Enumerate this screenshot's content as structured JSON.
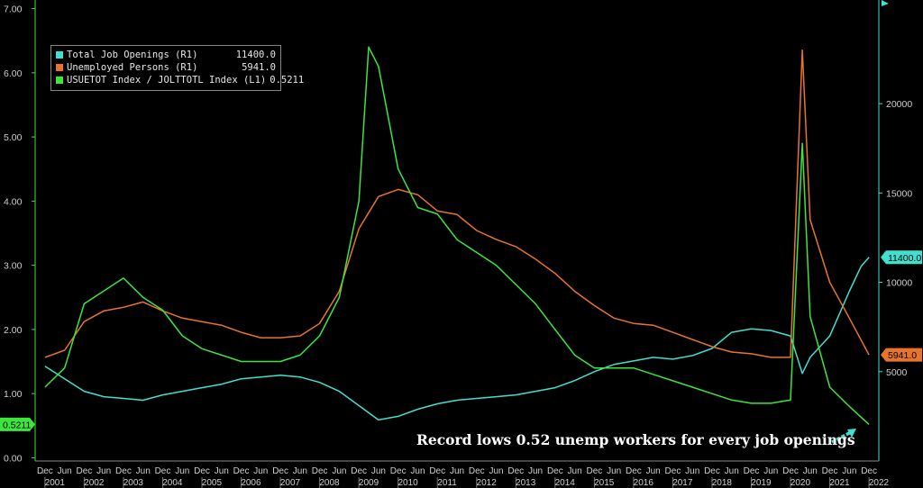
{
  "legend": {
    "items": [
      {
        "label": "Total Job Openings (R1)",
        "value": "11400.0",
        "color": "#40e0d0"
      },
      {
        "label": "Unemployed Persons (R1)",
        "value": "5941.0",
        "color": "#e8742a"
      },
      {
        "label": "USUETOT Index / JOLTTOTL Index (L1)",
        "value": "0.5211",
        "color": "#3ce63c"
      }
    ]
  },
  "annotation": "Record lows 0.52 unemp workers for every job openings",
  "tags": {
    "left": "0.5211",
    "right_openings": "11400.0",
    "right_unemployed": "5941.0"
  },
  "chart_data": {
    "type": "line",
    "title": "",
    "left_axis": {
      "ticks": [
        "0.00",
        "1.00",
        "2.00",
        "3.00",
        "4.00",
        "5.00",
        "6.00",
        "7.00"
      ],
      "range": [
        -0.05,
        7.05
      ],
      "color": "#3ce63c"
    },
    "right_axis": {
      "ticks": [
        "5000",
        "10000",
        "15000",
        "20000"
      ],
      "range": [
        0,
        25500
      ],
      "color": "#40e0d0"
    },
    "x_axis": {
      "start_label": "...",
      "month_labels": [
        "Dec",
        "Jun",
        "Dec",
        "Jun",
        "Dec",
        "Jun",
        "Dec",
        "Jun",
        "Dec",
        "Jun",
        "Dec",
        "Jun",
        "Dec",
        "Jun",
        "Dec",
        "Jun",
        "Dec",
        "Jun",
        "Dec",
        "Jun",
        "Dec",
        "Jun",
        "Dec",
        "Jun",
        "Dec",
        "Jun",
        "Dec",
        "Jun",
        "Dec",
        "Jun",
        "Dec",
        "Jun",
        "Dec",
        "Jun",
        "Dec",
        "Jun",
        "Dec",
        "Jun",
        "Dec",
        "Jun",
        "Dec",
        "Jun",
        "Dec"
      ],
      "years": [
        "2001",
        "2002",
        "2003",
        "2004",
        "2005",
        "2006",
        "2007",
        "2008",
        "2009",
        "2010",
        "2011",
        "2012",
        "2013",
        "2014",
        "2015",
        "2016",
        "2017",
        "2018",
        "2019",
        "2020",
        "2021",
        "2022"
      ],
      "range": [
        2000.75,
        2022.25
      ]
    },
    "series": [
      {
        "name": "Total Job Openings (R1)",
        "axis": "right",
        "color": "#40e0d0",
        "x": [
          2001.0,
          2001.5,
          2002.0,
          2002.5,
          2003.0,
          2003.5,
          2004.0,
          2004.5,
          2005.0,
          2005.5,
          2006.0,
          2006.5,
          2007.0,
          2007.5,
          2008.0,
          2008.5,
          2009.0,
          2009.5,
          2010.0,
          2010.5,
          2011.0,
          2011.5,
          2012.0,
          2012.5,
          2013.0,
          2013.5,
          2014.0,
          2014.5,
          2015.0,
          2015.5,
          2016.0,
          2016.5,
          2017.0,
          2017.5,
          2018.0,
          2018.5,
          2019.0,
          2019.5,
          2020.0,
          2020.3,
          2020.5,
          2021.0,
          2021.5,
          2021.8,
          2022.0
        ],
        "y": [
          5300,
          4600,
          3900,
          3600,
          3500,
          3400,
          3700,
          3900,
          4100,
          4300,
          4600,
          4700,
          4800,
          4700,
          4400,
          3900,
          3100,
          2300,
          2500,
          2900,
          3200,
          3400,
          3500,
          3600,
          3700,
          3900,
          4100,
          4500,
          5000,
          5400,
          5600,
          5800,
          5700,
          5900,
          6300,
          7200,
          7400,
          7300,
          7000,
          4900,
          5800,
          7000,
          9500,
          10900,
          11400
        ]
      },
      {
        "name": "Unemployed Persons (R1)",
        "axis": "right",
        "color": "#e8742a",
        "x": [
          2001.0,
          2001.5,
          2002.0,
          2002.5,
          2003.0,
          2003.5,
          2004.0,
          2004.5,
          2005.0,
          2005.5,
          2006.0,
          2006.5,
          2007.0,
          2007.5,
          2008.0,
          2008.5,
          2009.0,
          2009.5,
          2010.0,
          2010.5,
          2011.0,
          2011.5,
          2012.0,
          2012.5,
          2013.0,
          2013.5,
          2014.0,
          2014.5,
          2015.0,
          2015.5,
          2016.0,
          2016.5,
          2017.0,
          2017.5,
          2018.0,
          2018.5,
          2019.0,
          2019.5,
          2020.0,
          2020.3,
          2020.5,
          2021.0,
          2021.5,
          2022.0
        ],
        "y": [
          5800,
          6200,
          7800,
          8400,
          8600,
          8900,
          8400,
          8000,
          7800,
          7600,
          7200,
          6900,
          6900,
          7000,
          7700,
          9500,
          13000,
          14800,
          15200,
          14900,
          14000,
          13800,
          12900,
          12400,
          12000,
          11300,
          10500,
          9500,
          8700,
          8000,
          7700,
          7600,
          7200,
          6800,
          6400,
          6100,
          6000,
          5800,
          5800,
          23000,
          13500,
          10000,
          8000,
          5941
        ]
      },
      {
        "name": "USUETOT Index / JOLTTOTL Index (L1)",
        "axis": "left",
        "color": "#3ce63c",
        "x": [
          2001.0,
          2001.5,
          2002.0,
          2002.5,
          2003.0,
          2003.5,
          2004.0,
          2004.5,
          2005.0,
          2005.5,
          2006.0,
          2006.5,
          2007.0,
          2007.5,
          2008.0,
          2008.5,
          2009.0,
          2009.25,
          2009.5,
          2010.0,
          2010.5,
          2011.0,
          2011.5,
          2012.0,
          2012.5,
          2013.0,
          2013.5,
          2014.0,
          2014.5,
          2015.0,
          2015.5,
          2016.0,
          2016.5,
          2017.0,
          2017.5,
          2018.0,
          2018.5,
          2019.0,
          2019.5,
          2020.0,
          2020.3,
          2020.5,
          2021.0,
          2021.5,
          2022.0
        ],
        "y": [
          1.1,
          1.4,
          2.4,
          2.6,
          2.8,
          2.5,
          2.3,
          1.9,
          1.7,
          1.6,
          1.5,
          1.5,
          1.5,
          1.6,
          1.9,
          2.5,
          4.0,
          6.4,
          6.1,
          4.5,
          3.9,
          3.8,
          3.4,
          3.2,
          3.0,
          2.7,
          2.4,
          2.0,
          1.6,
          1.4,
          1.4,
          1.4,
          1.3,
          1.2,
          1.1,
          1.0,
          0.9,
          0.85,
          0.85,
          0.9,
          4.9,
          2.2,
          1.1,
          0.8,
          0.52
        ]
      }
    ]
  }
}
